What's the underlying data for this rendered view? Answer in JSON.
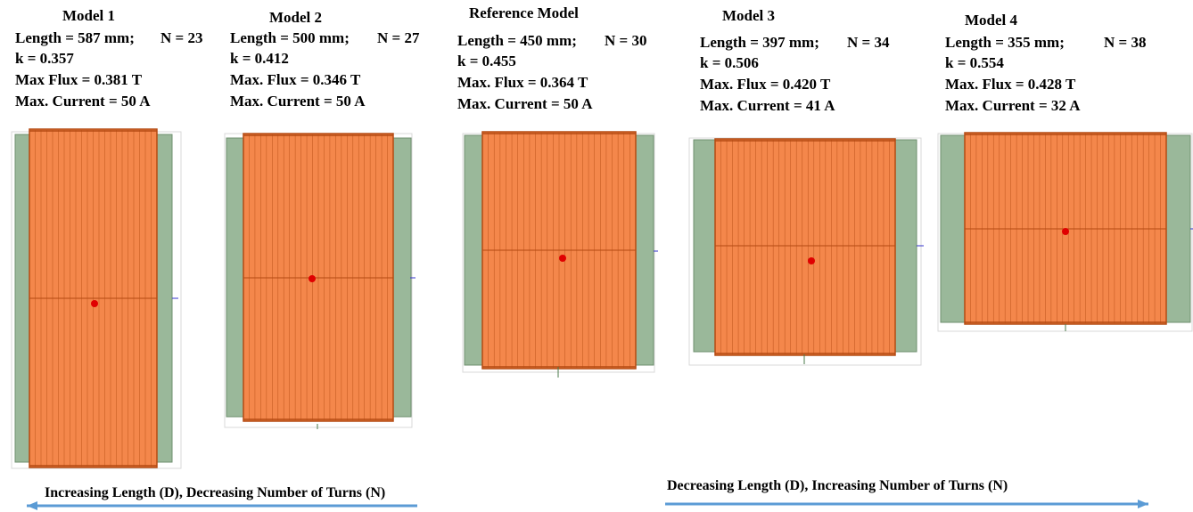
{
  "models": [
    {
      "title": "Model 1",
      "length": "Length = 587 mm;",
      "turns": "N = 23",
      "k": "k = 0.357",
      "flux": "Max Flux = 0.381 T",
      "current": "Max. Current = 50 A"
    },
    {
      "title": "Model 2",
      "length": "Length = 500 mm;",
      "turns": "N = 27",
      "k": "k = 0.412",
      "flux": "Max. Flux = 0.346 T",
      "current": "Max. Current = 50 A"
    },
    {
      "title": "Reference Model",
      "length": "Length = 450 mm;",
      "turns": "N = 30",
      "k": "k = 0.455",
      "flux": "Max. Flux = 0.364 T",
      "current": "Max. Current = 50 A"
    },
    {
      "title": "Model 3",
      "length": "Length = 397 mm;",
      "turns": "N = 34",
      "k": "k = 0.506",
      "flux": "Max. Flux = 0.420 T",
      "current": "Max. Current = 41 A"
    },
    {
      "title": "Model 4",
      "length": "Length = 355 mm;",
      "turns": "N = 38",
      "k": "k = 0.554",
      "flux": "Max. Flux = 0.428 T",
      "current": "Max. Current = 32 A"
    }
  ],
  "arrows": {
    "left": "Increasing Length (D), Decreasing Number of Turns (N)",
    "right": "Decreasing Length (D), Increasing Number of Turns (N)"
  },
  "colors": {
    "coil": "#f4874b",
    "coil_line": "#b44a12",
    "core": "#9ab89a",
    "core_edge": "#6f8f6f",
    "marker": "#e00000",
    "arrow": "#5b9bd5",
    "axis": "#3333cc"
  }
}
